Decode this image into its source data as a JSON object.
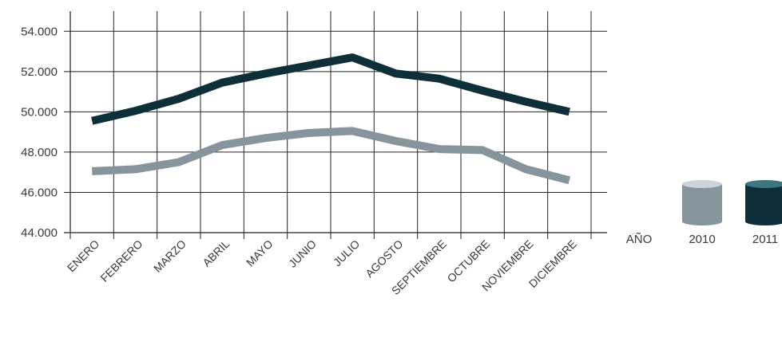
{
  "chart_data": {
    "type": "line",
    "categories": [
      "ENERO",
      "FEBRERO",
      "MARZO",
      "ABRIL",
      "MAYO",
      "JUNIO",
      "JULIO",
      "AGOSTO",
      "SEPTIEMBRE",
      "OCTUBRE",
      "NOVIEMBRE",
      "DICIEMBRE"
    ],
    "series": [
      {
        "name": "2010",
        "color": "#86949c",
        "values": [
          47050,
          47150,
          47500,
          48350,
          48700,
          48950,
          49050,
          48550,
          48150,
          48100,
          47150,
          46600
        ]
      },
      {
        "name": "2011",
        "color": "#0d2f3a",
        "values": [
          49550,
          50050,
          50650,
          51450,
          51900,
          52300,
          52700,
          51900,
          51650,
          51050,
          50500,
          50000
        ]
      }
    ],
    "yticks": [
      "44.000",
      "46.000",
      "48.000",
      "50.000",
      "52.000",
      "54.000"
    ],
    "ylim": [
      44000,
      55000
    ],
    "title": "",
    "xlabel": "",
    "ylabel": "",
    "grid": true,
    "legend": {
      "title": "AÑO",
      "placement": "right"
    }
  }
}
